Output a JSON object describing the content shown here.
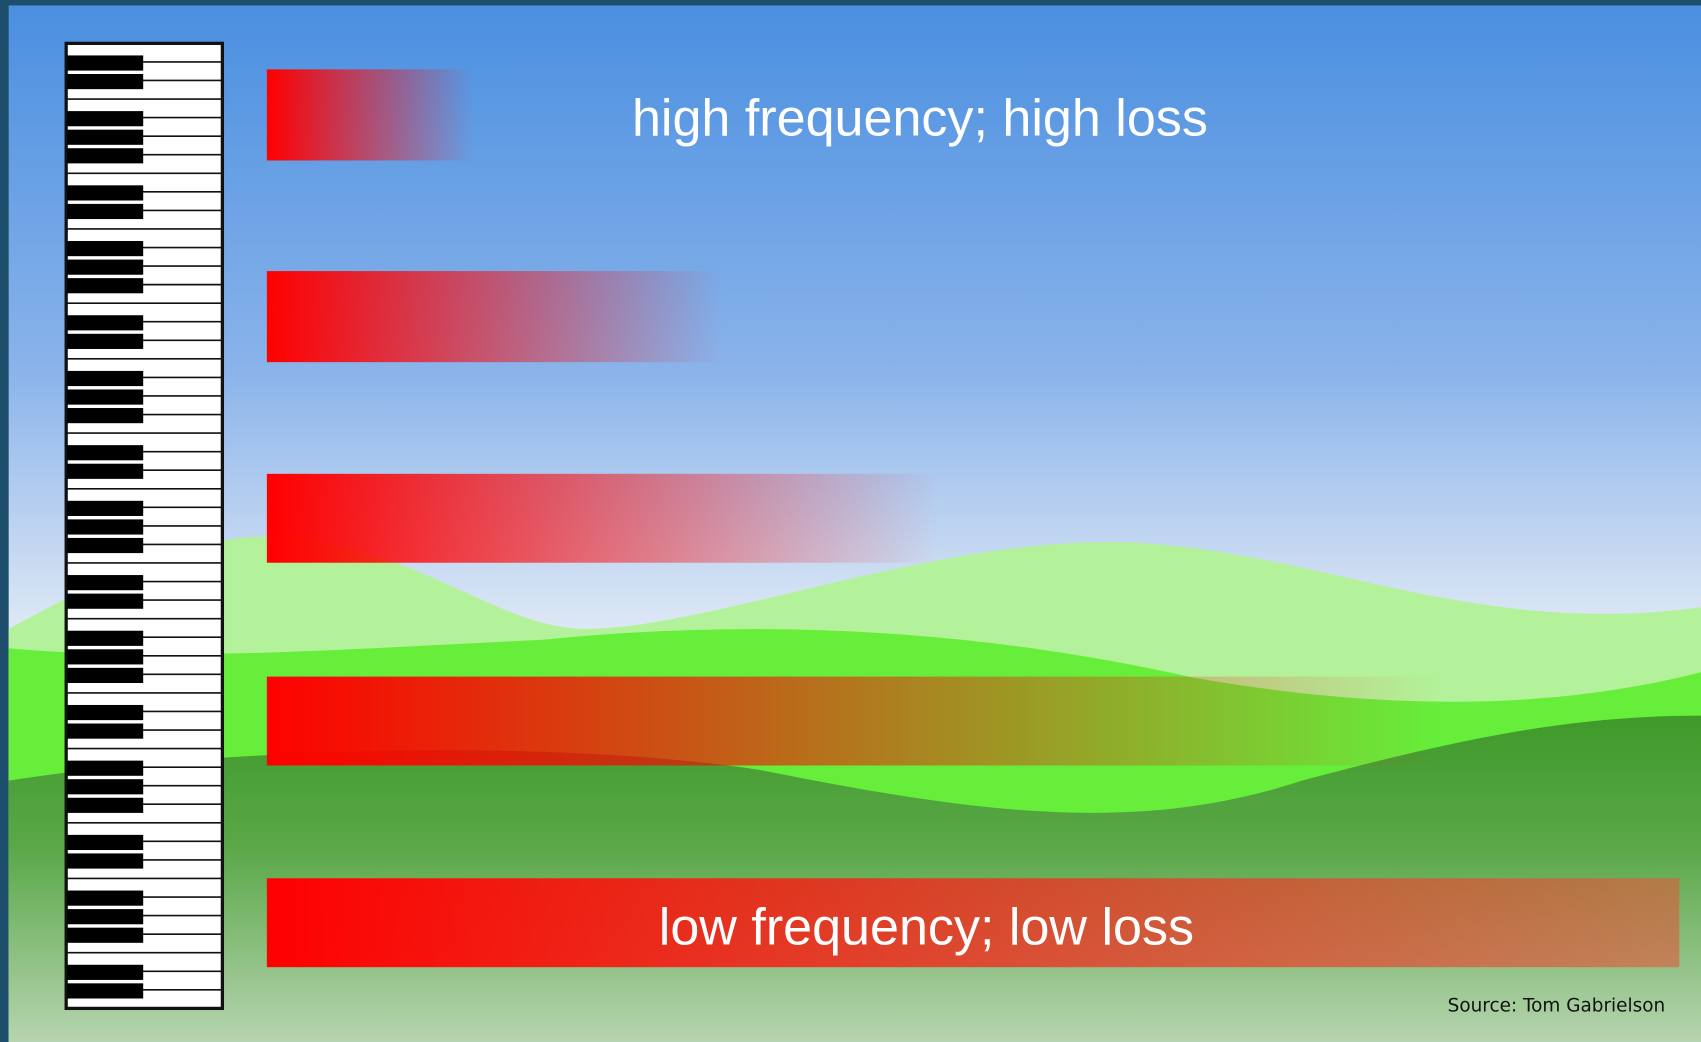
{
  "labels": {
    "top": "high frequency; high loss",
    "bottom": "low frequency; low loss"
  },
  "source": "Source: Tom Gabrielson"
}
